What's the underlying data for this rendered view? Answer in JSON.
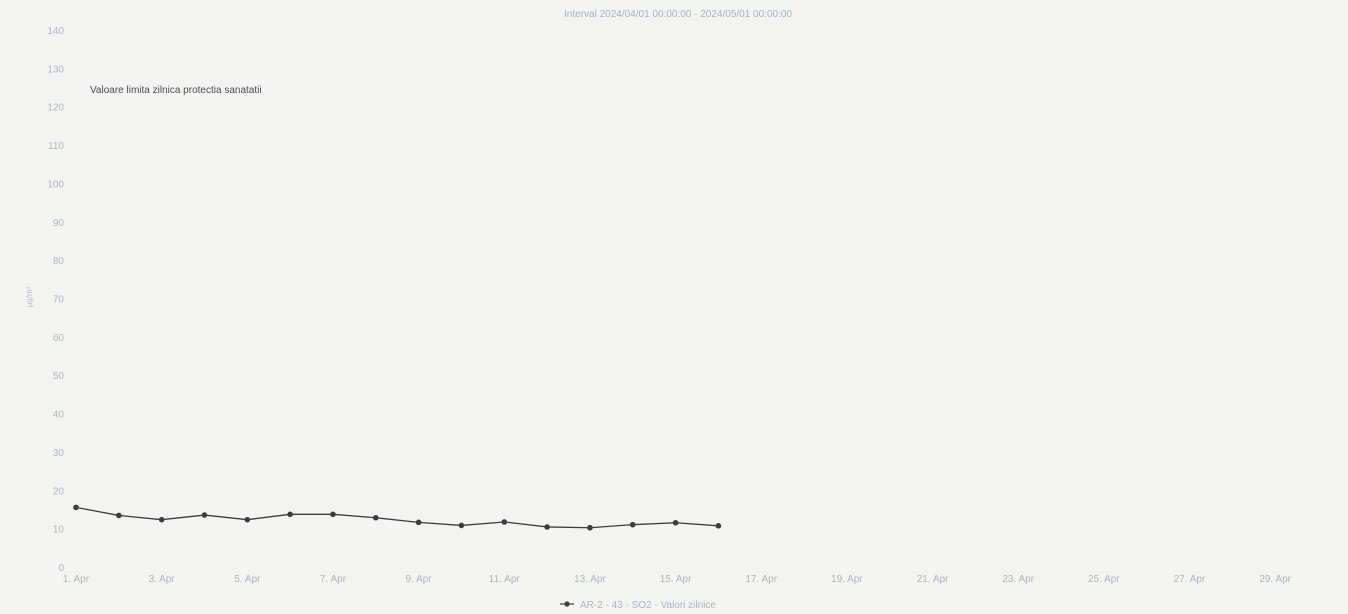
{
  "chart_data": {
    "type": "line",
    "subtitle": "Interval 2024/04/01 00:00:00 - 2024/05/01 00:00:00",
    "ylabel": "µg/m³",
    "ylim": [
      0,
      140
    ],
    "yticks": [
      0,
      10,
      20,
      30,
      40,
      50,
      60,
      70,
      80,
      90,
      100,
      110,
      120,
      130,
      140
    ],
    "x_domain": [
      "2024-04-01",
      "2024-04-30"
    ],
    "xtick_labels": [
      "1. Apr",
      "3. Apr",
      "5. Apr",
      "7. Apr",
      "9. Apr",
      "11. Apr",
      "13. Apr",
      "15. Apr",
      "17. Apr",
      "19. Apr",
      "21. Apr",
      "23. Apr",
      "25. Apr",
      "27. Apr",
      "29. Apr"
    ],
    "grid": false,
    "limit_line": {
      "label": "Valoare limita zilnica protectia sanatatii"
    },
    "series": [
      {
        "name": "AR-2 - 43 - SO2 - Valori zilnice",
        "color": "#3d3d3d",
        "x": [
          "2024-04-01",
          "2024-04-02",
          "2024-04-03",
          "2024-04-04",
          "2024-04-05",
          "2024-04-06",
          "2024-04-07",
          "2024-04-08",
          "2024-04-09",
          "2024-04-10",
          "2024-04-11",
          "2024-04-12",
          "2024-04-13",
          "2024-04-14",
          "2024-04-15",
          "2024-04-16"
        ],
        "values": [
          15.8,
          13.7,
          12.6,
          13.8,
          12.6,
          14.0,
          14.0,
          13.1,
          11.9,
          11.1,
          12.0,
          10.7,
          10.5,
          11.3,
          11.8,
          11.0
        ]
      }
    ],
    "legend_position": "bottom"
  }
}
